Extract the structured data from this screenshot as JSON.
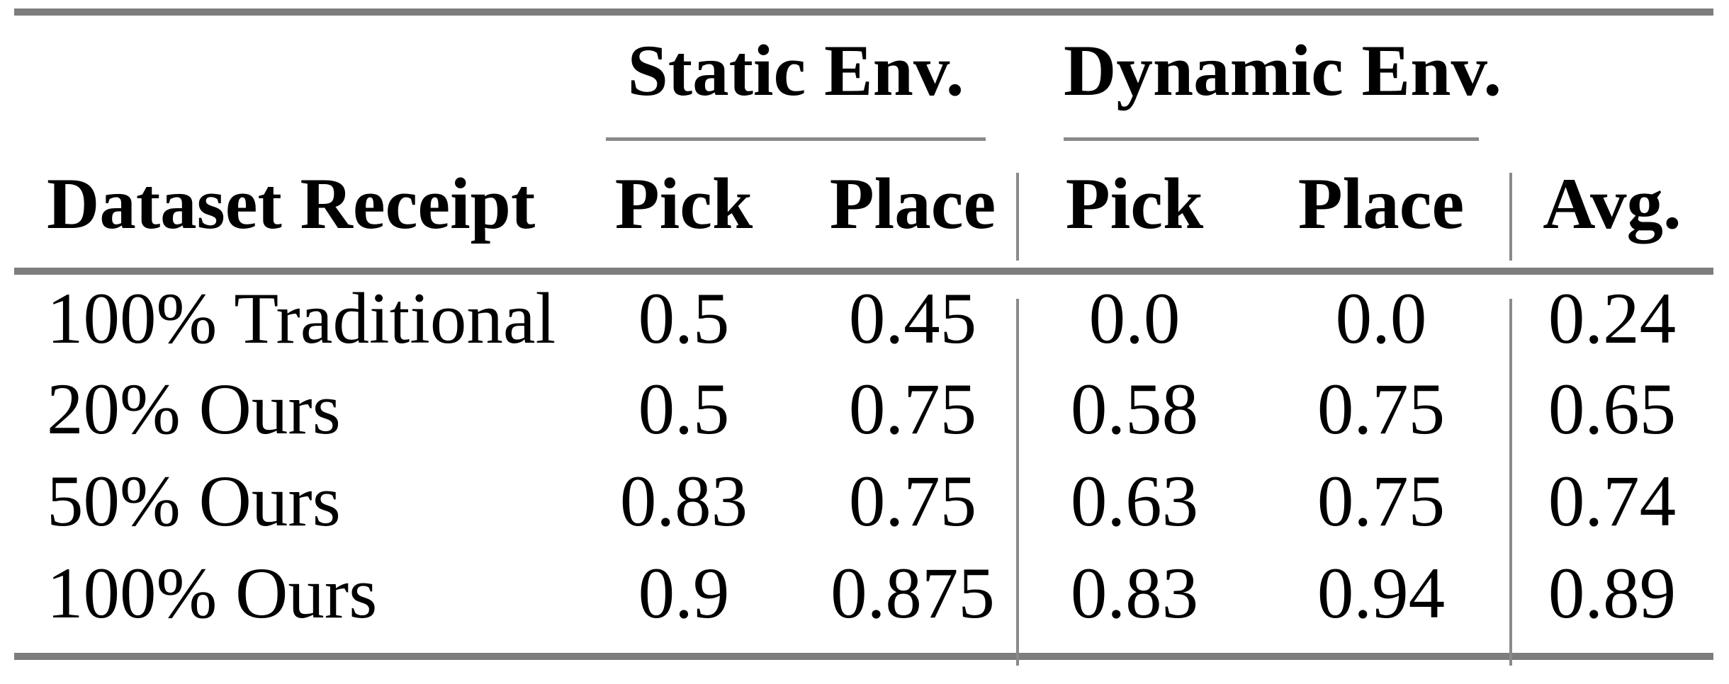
{
  "table": {
    "groups": [
      {
        "label": "Static Env."
      },
      {
        "label": "Dynamic Env."
      }
    ],
    "headers": {
      "row_label": "Dataset Receipt",
      "static_pick": "Pick",
      "static_place": "Place",
      "dynamic_pick": "Pick",
      "dynamic_place": "Place",
      "avg": "Avg."
    },
    "rows": [
      {
        "label": "100% Traditional",
        "values": [
          "0.5",
          "0.45",
          "0.0",
          "0.0",
          "0.24"
        ]
      },
      {
        "label": "20% Ours",
        "values": [
          "0.5",
          "0.75",
          "0.58",
          "0.75",
          "0.65"
        ]
      },
      {
        "label": "50% Ours",
        "values": [
          "0.83",
          "0.75",
          "0.63",
          "0.75",
          "0.74"
        ]
      },
      {
        "label": "100% Ours",
        "values": [
          "0.9",
          "0.875",
          "0.83",
          "0.94",
          "0.89"
        ]
      }
    ],
    "colors": {
      "rule_thick": "#7d7d7d",
      "rule_thin": "#8a8a8a",
      "text": "#000000",
      "background": "#ffffff"
    }
  },
  "chart_data": {
    "type": "table",
    "column_groups": [
      "",
      "Static Env.",
      "Static Env.",
      "Dynamic Env.",
      "Dynamic Env.",
      ""
    ],
    "columns": [
      "Dataset Receipt",
      "Pick",
      "Place",
      "Pick",
      "Place",
      "Avg."
    ],
    "rows": [
      [
        "100% Traditional",
        0.5,
        0.45,
        0.0,
        0.0,
        0.24
      ],
      [
        "20% Ours",
        0.5,
        0.75,
        0.58,
        0.75,
        0.65
      ],
      [
        "50% Ours",
        0.83,
        0.75,
        0.63,
        0.75,
        0.74
      ],
      [
        "100% Ours",
        0.9,
        0.875,
        0.83,
        0.94,
        0.89
      ]
    ]
  }
}
